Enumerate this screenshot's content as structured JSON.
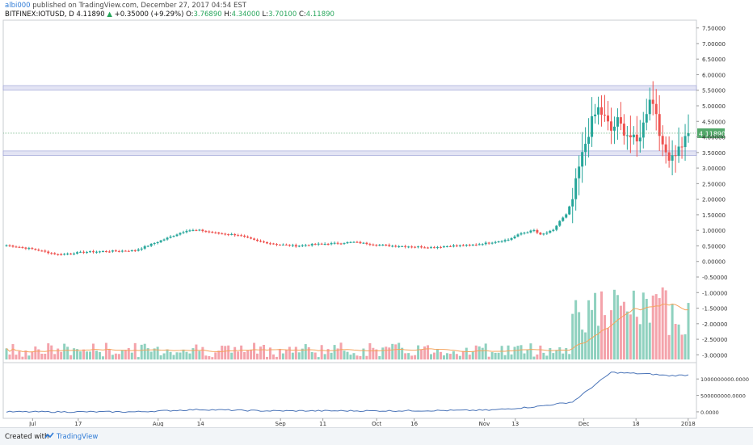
{
  "header": {
    "user": "albi000",
    "published": "published on TradingView.com, December 27, 2017 04:54 EST",
    "symbol": "BITFINEX:IOTUSD, D",
    "last": "4.11890",
    "arrow": "▲",
    "change": "+0.35000 (+9.29%)",
    "o_label": "O:",
    "o_value": "3.76890",
    "h_label": "H:",
    "h_value": "4.34000",
    "l_label": "L:",
    "l_value": "3.70100",
    "c_label": "C:",
    "c_value": "4.11890"
  },
  "footer": {
    "created": "Created with",
    "brand": "TradingView"
  },
  "colors": {
    "up": "#26a69a",
    "down": "#ef5350",
    "vol_up": "#8fd1bf",
    "vol_down": "#f4a3ab",
    "ma": "#f5a35c",
    "obv": "#4a74b8",
    "zone": "#d7d9f0",
    "last_badge": "#53a86a"
  },
  "chart_data": {
    "type": "candlestick",
    "symbol": "BITFINEX:IOTUSD",
    "timeframe": "D",
    "y_ticks": [
      "7.50000",
      "7.00000",
      "6.50000",
      "6.00000",
      "5.50000",
      "5.00000",
      "4.50000",
      "4.00000",
      "3.50000",
      "3.00000",
      "2.50000",
      "2.00000",
      "1.50000",
      "1.00000",
      "0.50000",
      "0.00000",
      "-0.50000",
      "-1.00000",
      "-1.50000",
      "-2.00000",
      "-2.50000",
      "-3.00000"
    ],
    "x_ticks": [
      "Jul",
      "17",
      "Aug",
      "14",
      "Sep",
      "11",
      "Oct",
      "16",
      "Nov",
      "13",
      "Dec",
      "18",
      "2018"
    ],
    "last_price_label": "4.11890",
    "last_price": 4.1189,
    "zones": [
      [
        5.5,
        5.65
      ],
      [
        3.4,
        3.55
      ]
    ],
    "anchors": [
      [
        0,
        0.52
      ],
      [
        8,
        0.4
      ],
      [
        16,
        0.22
      ],
      [
        24,
        0.3
      ],
      [
        32,
        0.33
      ],
      [
        40,
        0.35
      ],
      [
        50,
        0.75
      ],
      [
        56,
        1.0
      ],
      [
        60,
        1.0
      ],
      [
        66,
        0.9
      ],
      [
        72,
        0.85
      ],
      [
        78,
        0.65
      ],
      [
        84,
        0.55
      ],
      [
        90,
        0.5
      ],
      [
        96,
        0.55
      ],
      [
        102,
        0.58
      ],
      [
        108,
        0.62
      ],
      [
        114,
        0.55
      ],
      [
        120,
        0.5
      ],
      [
        126,
        0.48
      ],
      [
        132,
        0.45
      ],
      [
        138,
        0.5
      ],
      [
        144,
        0.52
      ],
      [
        150,
        0.6
      ],
      [
        156,
        0.7
      ],
      [
        160,
        0.9
      ],
      [
        164,
        1.0
      ],
      [
        166,
        0.85
      ],
      [
        170,
        1.0
      ],
      [
        172,
        1.3
      ],
      [
        174,
        1.5
      ],
      [
        176,
        2.0
      ],
      [
        178,
        3.0
      ],
      [
        180,
        3.8
      ],
      [
        182,
        4.5
      ],
      [
        184,
        4.9
      ],
      [
        186,
        4.6
      ],
      [
        188,
        4.2
      ],
      [
        190,
        4.5
      ],
      [
        192,
        4.2
      ],
      [
        194,
        4.0
      ],
      [
        196,
        3.8
      ],
      [
        198,
        4.4
      ],
      [
        200,
        5.3
      ],
      [
        202,
        4.8
      ],
      [
        204,
        3.6
      ],
      [
        206,
        3.4
      ],
      [
        208,
        3.5
      ],
      [
        210,
        3.77
      ],
      [
        212,
        4.12
      ]
    ],
    "volume_ma_color": "#f5a35c",
    "obv_ticks": [
      "1000000000.0000",
      "500000000.0000",
      "0.0000"
    ],
    "obv_anchors": [
      [
        0,
        0
      ],
      [
        40,
        0
      ],
      [
        60,
        70000000
      ],
      [
        80,
        30000000
      ],
      [
        120,
        30000000
      ],
      [
        150,
        50000000
      ],
      [
        164,
        150000000
      ],
      [
        176,
        300000000
      ],
      [
        188,
        1200000000
      ],
      [
        200,
        1150000000
      ],
      [
        206,
        1100000000
      ],
      [
        212,
        1120000000
      ]
    ]
  }
}
